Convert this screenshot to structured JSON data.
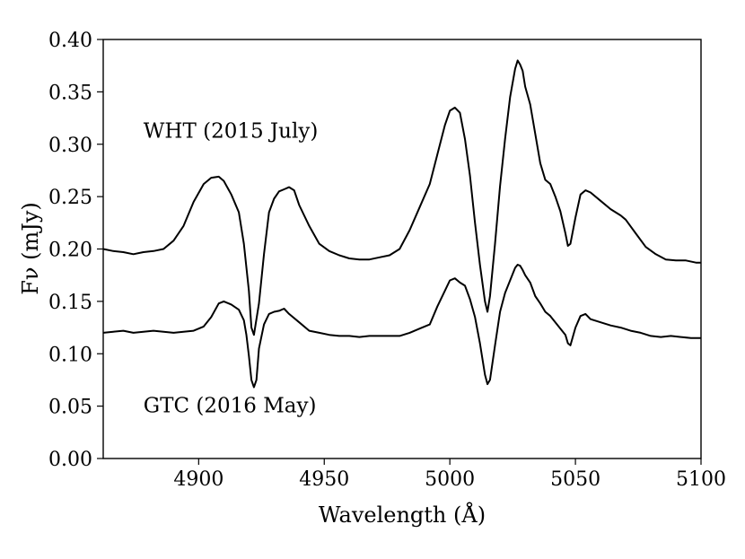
{
  "chart_data": {
    "type": "line",
    "title": "",
    "xlabel": "Wavelength (Å)",
    "ylabel": "Fν (mJy)",
    "xlim": [
      4862,
      5100
    ],
    "ylim": [
      0.0,
      0.4
    ],
    "grid": false,
    "x_ticks": [
      "4900",
      "4950",
      "5000",
      "5050",
      "5100"
    ],
    "x_tick_values": [
      4900,
      4950,
      5000,
      5050,
      5100
    ],
    "y_ticks": [
      "0.00",
      "0.05",
      "0.10",
      "0.15",
      "0.20",
      "0.25",
      "0.30",
      "0.35",
      "0.40"
    ],
    "y_tick_values": [
      0.0,
      0.05,
      0.1,
      0.15,
      0.2,
      0.25,
      0.3,
      0.35,
      0.4
    ],
    "annotations": [
      "WHT (2015 July)",
      "GTC (2016 May)"
    ],
    "annotation_anchor": [
      {
        "x": 4878,
        "y": 0.306
      },
      {
        "x": 4878,
        "y": 0.044
      }
    ],
    "series": [
      {
        "label": "WHT (2015 July)",
        "color": "#000000",
        "x": [
          4862,
          4866,
          4870,
          4874,
          4878,
          4882,
          4886,
          4890,
          4894,
          4898,
          4902,
          4905,
          4908,
          4910,
          4913,
          4916,
          4918,
          4920,
          4921,
          4922,
          4924,
          4926,
          4928,
          4930,
          4932,
          4934,
          4936,
          4938,
          4940,
          4944,
          4948,
          4952,
          4956,
          4960,
          4964,
          4968,
          4972,
          4976,
          4980,
          4984,
          4988,
          4992,
          4995,
          4998,
          5000,
          5002,
          5004,
          5006,
          5008,
          5010,
          5012,
          5014,
          5015,
          5016,
          5018,
          5020,
          5022,
          5024,
          5026,
          5027,
          5028,
          5029,
          5030,
          5032,
          5034,
          5036,
          5038,
          5040,
          5042,
          5044,
          5046,
          5047,
          5048,
          5050,
          5052,
          5054,
          5056,
          5060,
          5064,
          5068,
          5070,
          5074,
          5078,
          5082,
          5086,
          5090,
          5094,
          5098,
          5100
        ],
        "y": [
          0.2,
          0.198,
          0.197,
          0.195,
          0.197,
          0.198,
          0.2,
          0.208,
          0.222,
          0.245,
          0.262,
          0.268,
          0.269,
          0.265,
          0.252,
          0.235,
          0.205,
          0.16,
          0.125,
          0.118,
          0.148,
          0.195,
          0.235,
          0.248,
          0.255,
          0.257,
          0.259,
          0.256,
          0.242,
          0.222,
          0.205,
          0.198,
          0.194,
          0.191,
          0.19,
          0.19,
          0.192,
          0.194,
          0.2,
          0.218,
          0.24,
          0.262,
          0.29,
          0.318,
          0.332,
          0.335,
          0.33,
          0.305,
          0.27,
          0.225,
          0.185,
          0.15,
          0.14,
          0.155,
          0.205,
          0.26,
          0.305,
          0.345,
          0.372,
          0.38,
          0.376,
          0.37,
          0.355,
          0.338,
          0.31,
          0.282,
          0.266,
          0.262,
          0.25,
          0.236,
          0.215,
          0.203,
          0.205,
          0.23,
          0.252,
          0.256,
          0.254,
          0.246,
          0.238,
          0.232,
          0.228,
          0.215,
          0.202,
          0.195,
          0.19,
          0.189,
          0.189,
          0.187,
          0.187
        ]
      },
      {
        "label": "GTC (2016 May)",
        "color": "#000000",
        "x": [
          4862,
          4866,
          4870,
          4874,
          4878,
          4882,
          4886,
          4890,
          4894,
          4898,
          4902,
          4905,
          4908,
          4910,
          4913,
          4916,
          4918,
          4919,
          4920,
          4921,
          4922,
          4923,
          4924,
          4926,
          4928,
          4930,
          4932,
          4934,
          4936,
          4940,
          4944,
          4948,
          4952,
          4956,
          4960,
          4964,
          4968,
          4972,
          4976,
          4980,
          4984,
          4988,
          4992,
          4995,
          4998,
          5000,
          5002,
          5004,
          5006,
          5008,
          5010,
          5012,
          5014,
          5015,
          5016,
          5018,
          5020,
          5022,
          5024,
          5026,
          5027,
          5028,
          5029,
          5030,
          5032,
          5034,
          5036,
          5038,
          5040,
          5042,
          5044,
          5046,
          5047,
          5048,
          5050,
          5052,
          5054,
          5056,
          5060,
          5064,
          5068,
          5072,
          5076,
          5080,
          5084,
          5088,
          5092,
          5096,
          5100
        ],
        "y": [
          0.12,
          0.121,
          0.122,
          0.12,
          0.121,
          0.122,
          0.121,
          0.12,
          0.121,
          0.122,
          0.126,
          0.135,
          0.148,
          0.15,
          0.147,
          0.142,
          0.132,
          0.118,
          0.098,
          0.075,
          0.068,
          0.075,
          0.105,
          0.128,
          0.138,
          0.14,
          0.141,
          0.143,
          0.138,
          0.13,
          0.122,
          0.12,
          0.118,
          0.117,
          0.117,
          0.116,
          0.117,
          0.117,
          0.117,
          0.117,
          0.12,
          0.124,
          0.128,
          0.145,
          0.16,
          0.17,
          0.172,
          0.168,
          0.165,
          0.152,
          0.135,
          0.11,
          0.08,
          0.071,
          0.075,
          0.108,
          0.14,
          0.158,
          0.17,
          0.182,
          0.185,
          0.184,
          0.18,
          0.175,
          0.168,
          0.155,
          0.148,
          0.14,
          0.136,
          0.13,
          0.124,
          0.118,
          0.11,
          0.108,
          0.125,
          0.136,
          0.138,
          0.133,
          0.13,
          0.127,
          0.125,
          0.122,
          0.12,
          0.117,
          0.116,
          0.117,
          0.116,
          0.115,
          0.115
        ]
      }
    ]
  }
}
